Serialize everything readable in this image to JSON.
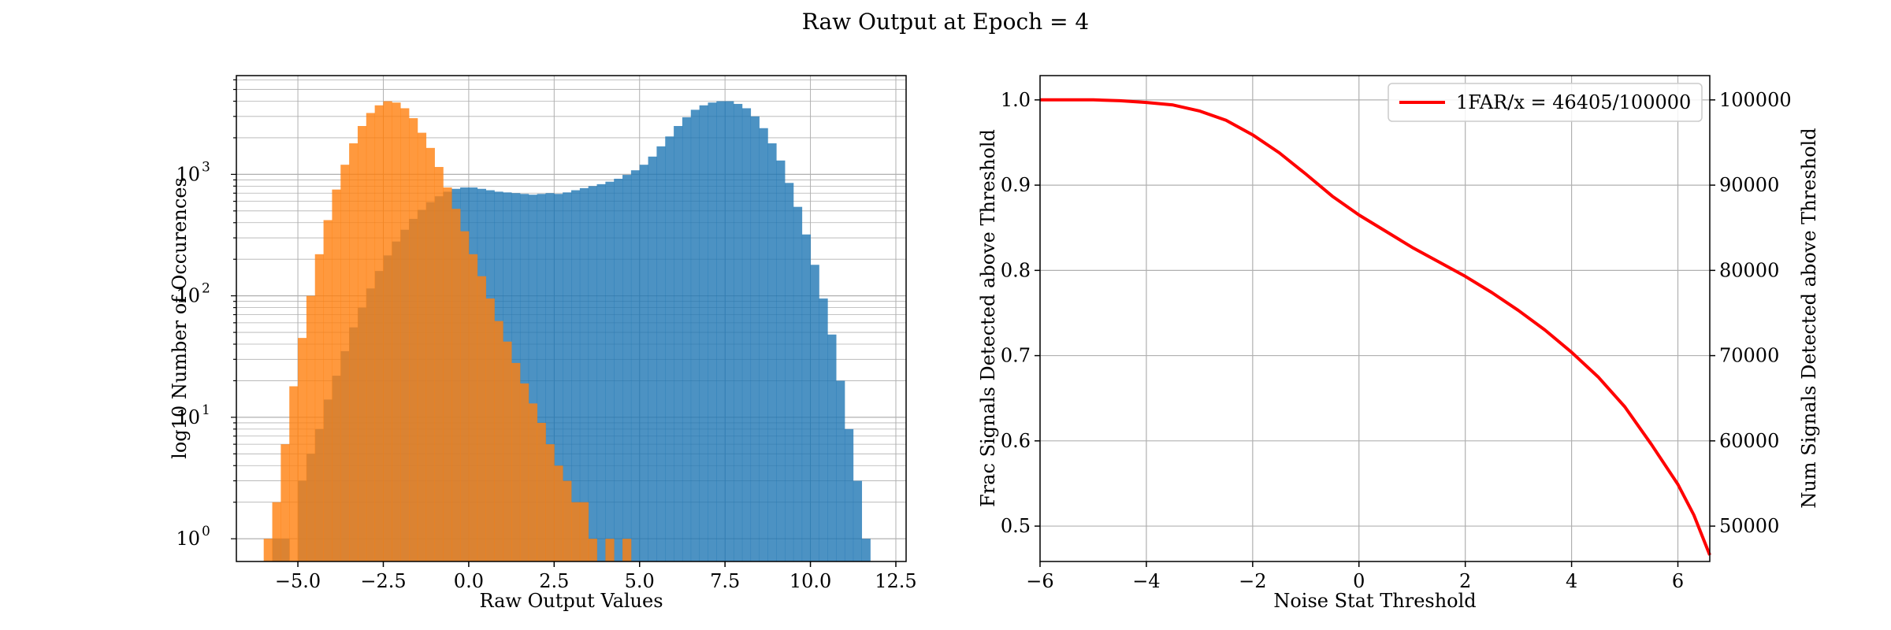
{
  "figure": {
    "title": "Raw Output at Epoch = 4"
  },
  "colors": {
    "signal": "#1f77b4",
    "noise": "#ff7f0e",
    "curve": "#ff0000",
    "grid": "#b0b0b0"
  },
  "chart_data": [
    {
      "type": "bar",
      "subtype": "histogram",
      "title": "",
      "xlabel": "Raw Output Values",
      "ylabel": "log10 Number of Occurences",
      "xlim": [
        -6.8,
        12.8
      ],
      "ylim": [
        0.65,
        6500
      ],
      "yscale": "log",
      "grid": true,
      "xticks": [
        -5.0,
        -2.5,
        0.0,
        2.5,
        5.0,
        7.5,
        10.0,
        12.5
      ],
      "xtick_labels": [
        "−5.0",
        "−2.5",
        "0.0",
        "2.5",
        "5.0",
        "7.5",
        "10.0",
        "12.5"
      ],
      "yticks": [
        1,
        10,
        100,
        1000
      ],
      "ytick_base": "10",
      "ytick_exponents": [
        "0",
        "1",
        "2",
        "3"
      ],
      "bin_width": 0.25,
      "series": [
        {
          "color": "#1f77b4",
          "alpha": 0.8,
          "bins": [
            [
              -5.75,
              1
            ],
            [
              -5.5,
              1
            ],
            [
              -5.0,
              3
            ],
            [
              -4.75,
              5
            ],
            [
              -4.5,
              8
            ],
            [
              -4.25,
              14
            ],
            [
              -4.0,
              22
            ],
            [
              -3.75,
              35
            ],
            [
              -3.5,
              55
            ],
            [
              -3.25,
              80
            ],
            [
              -3.0,
              115
            ],
            [
              -2.75,
              160
            ],
            [
              -2.5,
              215
            ],
            [
              -2.25,
              280
            ],
            [
              -2.0,
              350
            ],
            [
              -1.75,
              430
            ],
            [
              -1.5,
              510
            ],
            [
              -1.25,
              590
            ],
            [
              -1.0,
              660
            ],
            [
              -0.75,
              720
            ],
            [
              -0.5,
              760
            ],
            [
              -0.25,
              780
            ],
            [
              0.0,
              780
            ],
            [
              0.25,
              760
            ],
            [
              0.5,
              740
            ],
            [
              0.75,
              720
            ],
            [
              1.0,
              710
            ],
            [
              1.25,
              700
            ],
            [
              1.5,
              690
            ],
            [
              1.75,
              680
            ],
            [
              2.0,
              690
            ],
            [
              2.25,
              700
            ],
            [
              2.5,
              690
            ],
            [
              2.75,
              710
            ],
            [
              3.0,
              740
            ],
            [
              3.25,
              770
            ],
            [
              3.5,
              800
            ],
            [
              3.75,
              830
            ],
            [
              4.0,
              870
            ],
            [
              4.25,
              920
            ],
            [
              4.5,
              990
            ],
            [
              4.75,
              1080
            ],
            [
              5.0,
              1200
            ],
            [
              5.25,
              1400
            ],
            [
              5.5,
              1700
            ],
            [
              5.75,
              2050
            ],
            [
              6.0,
              2500
            ],
            [
              6.25,
              2950
            ],
            [
              6.5,
              3400
            ],
            [
              6.75,
              3700
            ],
            [
              7.0,
              3900
            ],
            [
              7.25,
              4000
            ],
            [
              7.5,
              4000
            ],
            [
              7.75,
              3800
            ],
            [
              8.0,
              3500
            ],
            [
              8.25,
              3000
            ],
            [
              8.5,
              2400
            ],
            [
              8.75,
              1800
            ],
            [
              9.0,
              1300
            ],
            [
              9.25,
              850
            ],
            [
              9.5,
              540
            ],
            [
              9.75,
              320
            ],
            [
              10.0,
              180
            ],
            [
              10.25,
              95
            ],
            [
              10.5,
              48
            ],
            [
              10.75,
              20
            ],
            [
              11.0,
              8
            ],
            [
              11.25,
              3
            ],
            [
              11.5,
              1
            ]
          ]
        },
        {
          "color": "#ff7f0e",
          "alpha": 0.8,
          "bins": [
            [
              -6.0,
              1
            ],
            [
              -5.75,
              2
            ],
            [
              -5.5,
              6
            ],
            [
              -5.25,
              18
            ],
            [
              -5.0,
              45
            ],
            [
              -4.75,
              100
            ],
            [
              -4.5,
              220
            ],
            [
              -4.25,
              420
            ],
            [
              -4.0,
              750
            ],
            [
              -3.75,
              1200
            ],
            [
              -3.5,
              1800
            ],
            [
              -3.25,
              2500
            ],
            [
              -3.0,
              3200
            ],
            [
              -2.75,
              3700
            ],
            [
              -2.5,
              4000
            ],
            [
              -2.25,
              3900
            ],
            [
              -2.0,
              3500
            ],
            [
              -1.75,
              2900
            ],
            [
              -1.5,
              2200
            ],
            [
              -1.25,
              1650
            ],
            [
              -1.0,
              1150
            ],
            [
              -0.75,
              780
            ],
            [
              -0.5,
              520
            ],
            [
              -0.25,
              340
            ],
            [
              0.0,
              220
            ],
            [
              0.25,
              145
            ],
            [
              0.5,
              95
            ],
            [
              0.75,
              62
            ],
            [
              1.0,
              42
            ],
            [
              1.25,
              28
            ],
            [
              1.5,
              19
            ],
            [
              1.75,
              13
            ],
            [
              2.0,
              9
            ],
            [
              2.25,
              6
            ],
            [
              2.5,
              4
            ],
            [
              2.75,
              3
            ],
            [
              3.0,
              2
            ],
            [
              3.25,
              2
            ],
            [
              3.5,
              1
            ],
            [
              4.0,
              1
            ],
            [
              4.5,
              1
            ]
          ]
        }
      ]
    },
    {
      "type": "line",
      "title": "",
      "xlabel": "Noise Stat Threshold",
      "ylabel": "Frac Signals Detected above Threshold",
      "ylabel_right": "Num Signals Detected above Threshold",
      "xlim": [
        -6,
        6.6
      ],
      "ylim": [
        0.4585,
        1.0285
      ],
      "ylim_right": [
        45850,
        102850
      ],
      "grid": true,
      "xticks": [
        -6,
        -4,
        -2,
        0,
        2,
        4,
        6
      ],
      "xtick_labels": [
        "−6",
        "−4",
        "−2",
        "0",
        "2",
        "4",
        "6"
      ],
      "yticks": [
        0.5,
        0.6,
        0.7,
        0.8,
        0.9,
        1.0
      ],
      "ytick_labels": [
        "0.5",
        "0.6",
        "0.7",
        "0.8",
        "0.9",
        "1.0"
      ],
      "yticks_right": [
        50000,
        60000,
        70000,
        80000,
        90000,
        100000
      ],
      "ytick_labels_right": [
        "50000",
        "60000",
        "70000",
        "80000",
        "90000",
        "100000"
      ],
      "legend": "top-right",
      "series": [
        {
          "name": "1FAR/x = 46405/100000",
          "color": "#ff0000",
          "x": [
            -6,
            -5,
            -4.5,
            -4,
            -3.5,
            -3,
            -2.5,
            -2,
            -1.5,
            -1,
            -0.5,
            0,
            0.5,
            1,
            1.5,
            2,
            2.5,
            3,
            3.5,
            4,
            4.5,
            5,
            5.5,
            6,
            6.3,
            6.6
          ],
          "y": [
            1.0,
            1.0,
            0.999,
            0.997,
            0.994,
            0.987,
            0.976,
            0.959,
            0.938,
            0.913,
            0.887,
            0.865,
            0.846,
            0.827,
            0.81,
            0.793,
            0.774,
            0.753,
            0.73,
            0.704,
            0.675,
            0.64,
            0.596,
            0.549,
            0.513,
            0.466
          ]
        }
      ]
    }
  ]
}
